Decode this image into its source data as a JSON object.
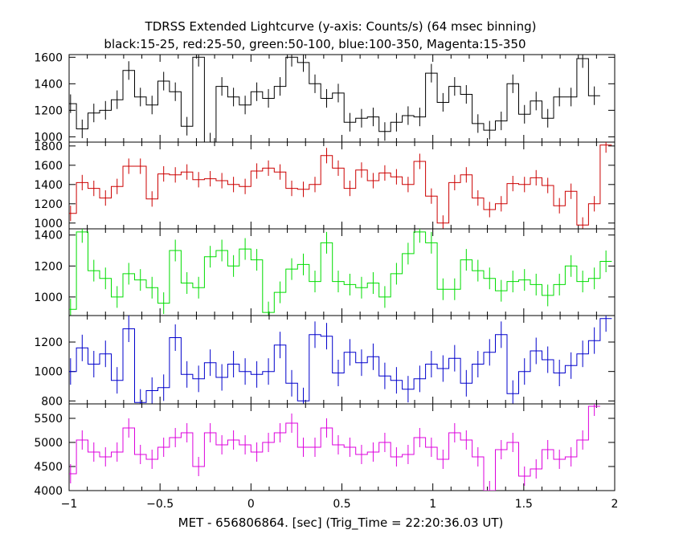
{
  "chart_data": {
    "type": "line",
    "title": "TDRSS Extended Lightcurve (y-axis: Counts/s) (64 msec binning)",
    "subtitle": "black:15-25, red:25-50, green:50-100, blue:100-350, Magenta:15-350",
    "xlabel": "MET - 656806864. [sec] (Trig_Time = 22:20:36.03 UT)",
    "xlim": [
      -1,
      2
    ],
    "x_ticks": [
      -1,
      -0.5,
      0,
      0.5,
      1,
      1.5,
      2
    ],
    "x_tick_labels": [
      "−1",
      "−0.5",
      "0",
      "0.5",
      "1",
      "1.5",
      "2"
    ],
    "bin_width": 0.064,
    "x_start": -1.024,
    "panels": [
      {
        "band": "15-25",
        "color": "#000000",
        "ylim": [
          960,
          1620
        ],
        "y_ticks": [
          1000,
          1200,
          1400,
          1600
        ],
        "values": [
          1250,
          1060,
          1180,
          1200,
          1280,
          1500,
          1300,
          1240,
          1420,
          1340,
          1080,
          1600,
          960,
          1380,
          1300,
          1240,
          1340,
          1290,
          1380,
          1600,
          1560,
          1400,
          1290,
          1330,
          1110,
          1140,
          1150,
          1040,
          1110,
          1160,
          1150,
          1480,
          1260,
          1380,
          1320,
          1100,
          1050,
          1120,
          1400,
          1170,
          1270,
          1140,
          1300,
          1300,
          1590,
          1310
        ],
        "errors": [
          70,
          70,
          70,
          70,
          70,
          70,
          70,
          70,
          70,
          70,
          70,
          70,
          70,
          70,
          70,
          70,
          70,
          70,
          70,
          70,
          70,
          70,
          70,
          70,
          70,
          70,
          70,
          70,
          70,
          70,
          70,
          70,
          70,
          70,
          70,
          70,
          70,
          70,
          70,
          70,
          70,
          70,
          70,
          70,
          70,
          70
        ]
      },
      {
        "band": "25-50",
        "color": "#cc0000",
        "ylim": [
          940,
          1840
        ],
        "y_ticks": [
          1000,
          1200,
          1400,
          1600,
          1800
        ],
        "values": [
          1100,
          1420,
          1360,
          1260,
          1380,
          1590,
          1590,
          1250,
          1510,
          1500,
          1530,
          1450,
          1460,
          1440,
          1400,
          1380,
          1540,
          1570,
          1530,
          1360,
          1350,
          1400,
          1700,
          1570,
          1360,
          1550,
          1440,
          1520,
          1480,
          1400,
          1640,
          1280,
          1000,
          1420,
          1500,
          1260,
          1140,
          1200,
          1410,
          1400,
          1470,
          1390,
          1180,
          1330,
          980,
          1200,
          1810
        ],
        "errors": [
          80,
          80,
          80,
          80,
          80,
          80,
          80,
          80,
          80,
          80,
          80,
          80,
          80,
          80,
          80,
          80,
          80,
          80,
          80,
          80,
          80,
          80,
          80,
          80,
          80,
          80,
          80,
          80,
          80,
          80,
          80,
          80,
          80,
          80,
          80,
          80,
          80,
          80,
          80,
          80,
          80,
          80,
          80,
          80,
          80,
          80,
          80
        ]
      },
      {
        "band": "50-100",
        "color": "#00dd00",
        "ylim": [
          880,
          1440
        ],
        "y_ticks": [
          1000,
          1200,
          1400
        ],
        "values": [
          920,
          1420,
          1170,
          1120,
          1000,
          1150,
          1110,
          1060,
          960,
          1300,
          1090,
          1060,
          1260,
          1300,
          1200,
          1310,
          1240,
          900,
          1030,
          1180,
          1210,
          1100,
          1350,
          1100,
          1080,
          1060,
          1090,
          1000,
          1150,
          1280,
          1420,
          1350,
          1050,
          1050,
          1240,
          1170,
          1120,
          1040,
          1100,
          1110,
          1080,
          1010,
          1080,
          1200,
          1100,
          1120,
          1230
        ],
        "errors": [
          70,
          70,
          70,
          70,
          70,
          70,
          70,
          70,
          70,
          70,
          70,
          70,
          70,
          70,
          70,
          70,
          70,
          70,
          70,
          70,
          70,
          70,
          70,
          70,
          70,
          70,
          70,
          70,
          70,
          70,
          70,
          70,
          70,
          70,
          70,
          70,
          70,
          70,
          70,
          70,
          70,
          70,
          70,
          70,
          70,
          70,
          70
        ]
      },
      {
        "band": "100-350",
        "color": "#0000cc",
        "ylim": [
          780,
          1380
        ],
        "y_ticks": [
          800,
          1000,
          1200
        ],
        "values": [
          1000,
          1160,
          1050,
          1120,
          940,
          1290,
          790,
          870,
          890,
          1230,
          980,
          950,
          1060,
          960,
          1050,
          1000,
          980,
          1000,
          1180,
          920,
          800,
          1250,
          1240,
          990,
          1130,
          1060,
          1100,
          970,
          940,
          880,
          950,
          1050,
          1020,
          1090,
          920,
          1050,
          1130,
          1250,
          850,
          1000,
          1140,
          1080,
          990,
          1040,
          1120,
          1210,
          1360
        ],
        "errors": [
          90,
          90,
          90,
          90,
          90,
          90,
          90,
          90,
          90,
          90,
          90,
          90,
          90,
          90,
          90,
          90,
          90,
          90,
          90,
          90,
          90,
          90,
          90,
          90,
          90,
          90,
          90,
          90,
          90,
          90,
          90,
          90,
          90,
          90,
          90,
          90,
          90,
          90,
          90,
          90,
          90,
          90,
          90,
          90,
          90,
          90,
          90
        ]
      },
      {
        "band": "15-350",
        "color": "#dd00dd",
        "ylim": [
          4000,
          5800
        ],
        "y_ticks": [
          4000,
          4500,
          5000,
          5500
        ],
        "values": [
          4350,
          5050,
          4800,
          4700,
          4800,
          5300,
          4750,
          4650,
          4900,
          5100,
          5200,
          4500,
          5200,
          4950,
          5050,
          4950,
          4800,
          5000,
          5200,
          5400,
          4900,
          4900,
          5300,
          4950,
          4900,
          4750,
          4800,
          5000,
          4700,
          4750,
          5100,
          4900,
          4650,
          5200,
          5050,
          4700,
          4000,
          4850,
          5000,
          4300,
          4450,
          4850,
          4650,
          4700,
          5050,
          5750
        ],
        "errors": [
          200,
          200,
          200,
          200,
          200,
          200,
          200,
          200,
          200,
          200,
          200,
          200,
          200,
          200,
          200,
          200,
          200,
          200,
          200,
          200,
          200,
          200,
          200,
          200,
          200,
          200,
          200,
          200,
          200,
          200,
          200,
          200,
          200,
          200,
          200,
          200,
          200,
          200,
          200,
          200,
          200,
          200,
          200,
          200,
          200,
          200
        ]
      }
    ]
  }
}
